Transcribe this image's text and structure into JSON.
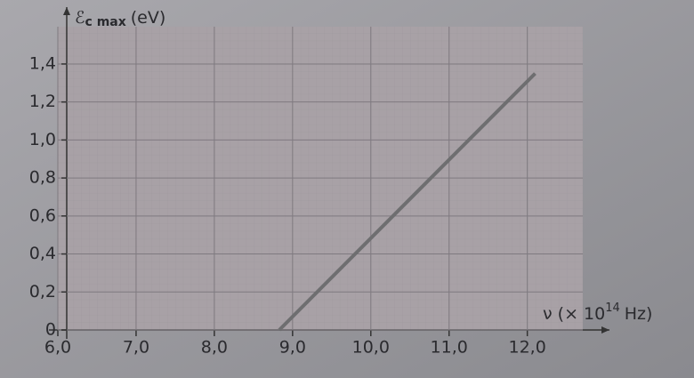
{
  "chart_data": {
    "type": "line",
    "y_label": {
      "symbol": "ℰ",
      "subscript": "c max",
      "unit": "(eV)"
    },
    "x_label": {
      "symbol": "ν (× 10",
      "superscript": "14",
      "unit": "Hz)"
    },
    "x": [
      8.83,
      12.1
    ],
    "series": [
      {
        "color": "#6e6e70",
        "values": [
          0,
          1.35
        ]
      }
    ],
    "xlim": [
      6.0,
      13.05
    ],
    "ylim": [
      0,
      1.69
    ],
    "xticks": [
      {
        "value": 6,
        "label": "6,0"
      },
      {
        "value": 7,
        "label": "7,0"
      },
      {
        "value": 8,
        "label": "8,0"
      },
      {
        "value": 9,
        "label": "9,0"
      },
      {
        "value": 10,
        "label": "10,0"
      },
      {
        "value": 11,
        "label": "11,0"
      },
      {
        "value": 12,
        "label": "12,0"
      }
    ],
    "yticks": [
      0,
      {
        "value": 0.2,
        "label": "0,2"
      },
      {
        "value": 0.4,
        "label": "0,4"
      },
      {
        "value": 0.6,
        "label": "0,6"
      },
      {
        "value": 0.8,
        "label": "0,8"
      },
      {
        "value": 1.0,
        "label": "1,0"
      },
      {
        "value": 1.2,
        "label": "1,2"
      },
      {
        "value": 1.4,
        "label": "1,4"
      }
    ],
    "grid": true
  }
}
